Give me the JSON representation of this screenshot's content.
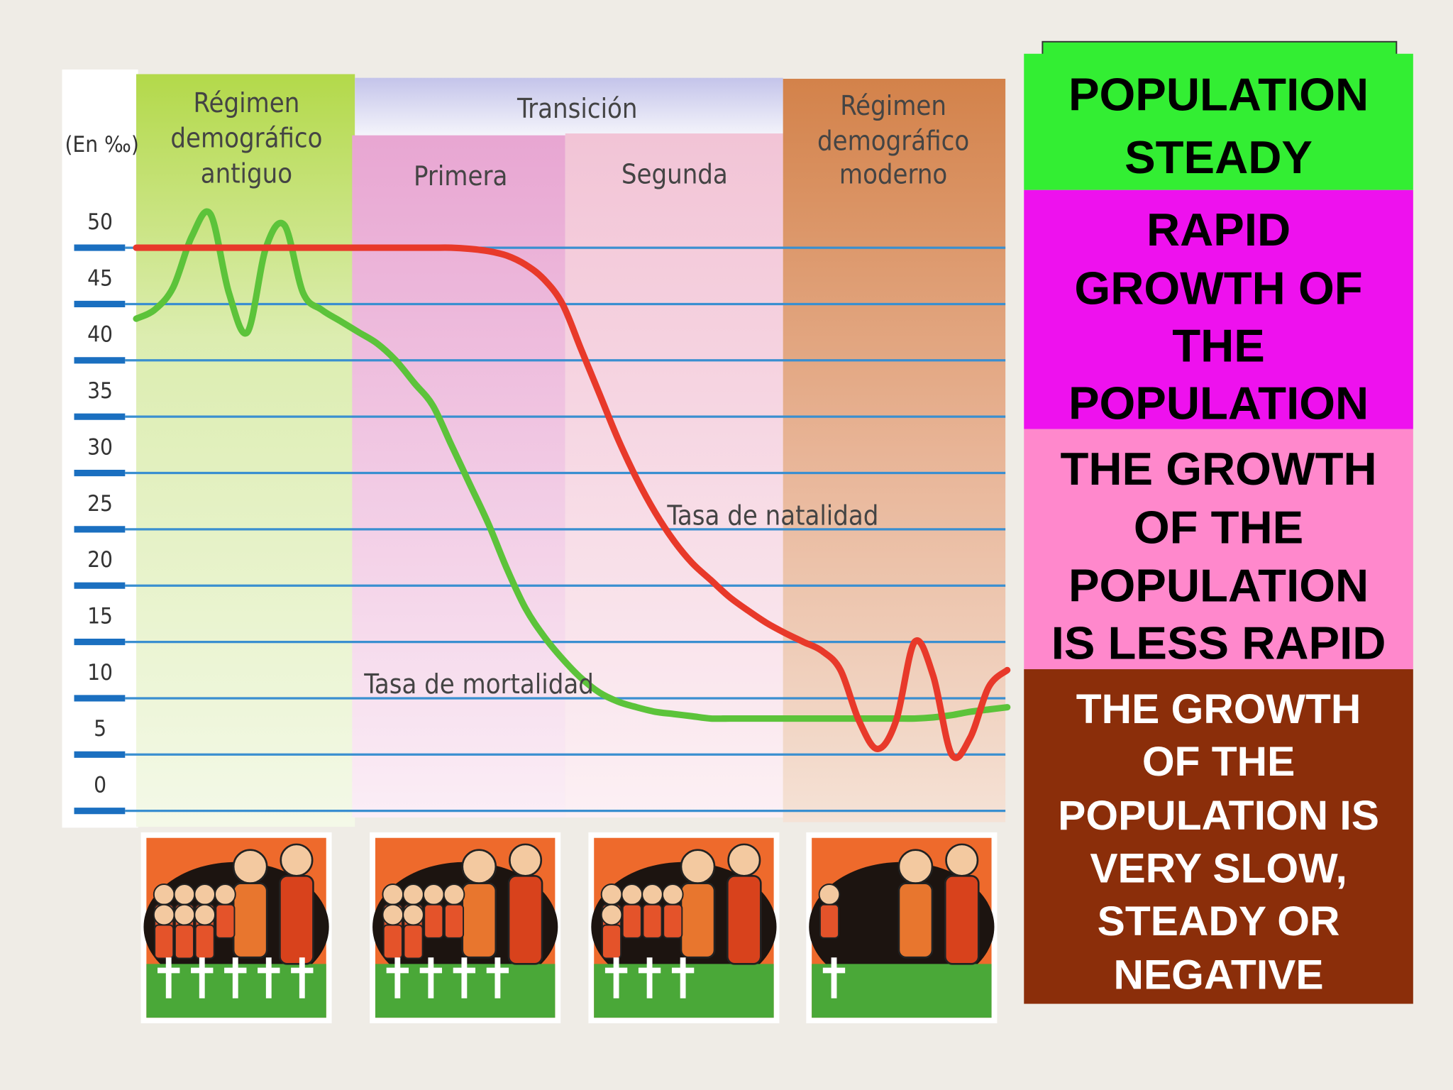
{
  "chart_data": {
    "type": "line",
    "y_label": "(En ‰)",
    "transition_label": "Transición",
    "phase_labels": [
      [
        "Régimen",
        "demográfico",
        "antiguo"
      ],
      [
        "Primera"
      ],
      [
        "Segunda"
      ],
      [
        "Régimen",
        "demográfico",
        "moderno"
      ]
    ],
    "x": [
      0,
      1,
      2,
      3,
      4,
      5,
      6,
      7,
      8,
      9,
      10,
      11,
      12,
      13,
      14,
      15,
      16,
      17,
      18,
      19,
      20,
      21,
      22,
      23,
      24,
      25,
      26,
      27,
      28,
      29,
      30,
      31,
      32,
      33,
      34,
      35,
      36,
      37,
      38,
      39,
      40,
      41,
      42,
      43,
      44,
      45,
      46,
      47
    ],
    "series": [
      {
        "name": "Tasa de natalidad",
        "color": "#e8392a",
        "values": [
          50,
          50,
          50,
          50,
          50,
          50,
          50,
          50,
          50,
          50,
          50,
          50,
          50,
          50,
          50,
          50,
          50,
          50,
          49.9,
          49.7,
          49.3,
          48.5,
          47.2,
          45,
          41,
          37,
          33,
          29.5,
          26.5,
          24,
          22,
          20.5,
          19,
          17.8,
          16.7,
          15.8,
          15,
          14.2,
          12.5,
          8,
          5.5,
          8,
          15,
          12,
          5,
          6.5,
          11,
          12.5
        ]
      },
      {
        "name": "Tasa de mortalidad",
        "color": "#5cc33a",
        "values": [
          43.7,
          44.5,
          46.5,
          51,
          53,
          46,
          42.5,
          50,
          52,
          46,
          44.5,
          43.5,
          42.5,
          41.5,
          40,
          38,
          36,
          32.5,
          29,
          25.5,
          21.5,
          18,
          15.5,
          13.5,
          11.8,
          10.5,
          9.7,
          9.2,
          8.8,
          8.6,
          8.4,
          8.2,
          8.2,
          8.2,
          8.2,
          8.2,
          8.2,
          8.2,
          8.2,
          8.2,
          8.2,
          8.2,
          8.2,
          8.3,
          8.5,
          8.8,
          9,
          9.2
        ]
      }
    ],
    "ylim": [
      -1,
      65
    ],
    "yticks": [
      0,
      5,
      10,
      15,
      20,
      25,
      30,
      35,
      40,
      45,
      50
    ],
    "grid": true,
    "grid_color": "#3a8fd0"
  },
  "panels": [
    {
      "color": "#33ee33",
      "text_color": "#000000",
      "lines": [
        "POPULATION",
        "STEADY"
      ]
    },
    {
      "color": "#ee11ee",
      "text_color": "#000000",
      "lines": [
        "RAPID",
        "GROWTH OF",
        "THE",
        "POPULATION"
      ]
    },
    {
      "color": "#ff88cc",
      "text_color": "#000000",
      "lines": [
        "THE GROWTH",
        "OF THE",
        "POPULATION",
        "IS LESS RAPID"
      ]
    },
    {
      "color": "#8b2e0a",
      "text_color": "#ffffff",
      "lines": [
        "THE GROWTH",
        "OF THE",
        "POPULATION IS",
        "VERY SLOW,",
        "STEADY OR",
        "NEGATIVE"
      ]
    }
  ]
}
